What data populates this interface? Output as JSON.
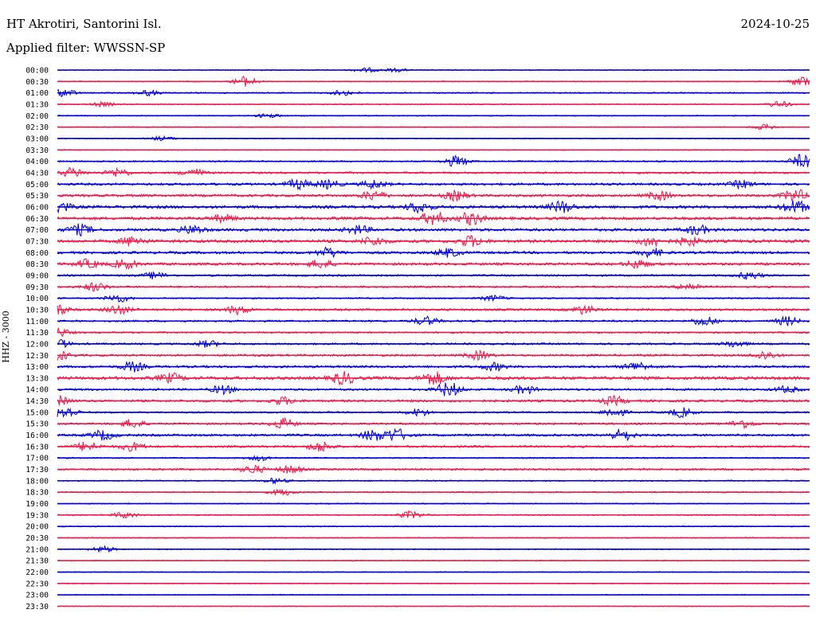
{
  "header": {
    "station": "HT Akrotiri, Santorini Isl.",
    "date": "2024-10-25",
    "filter": "Applied filter: WWSSN-SP"
  },
  "chart_data": {
    "type": "line",
    "title": "HT Akrotiri, Santorini Isl.",
    "ylabel": "HHZ - 3000",
    "colors": [
      "#0000e0",
      "#f0194a"
    ],
    "note_values": "amplitude levels 0-1 per 30-min trace row, bursts as fraction along trace",
    "rows": [
      {
        "label": "00:00",
        "level": 0.25,
        "bursts": [
          [
            0.41,
            0.4
          ],
          [
            0.45,
            0.3
          ]
        ]
      },
      {
        "label": "00:30",
        "level": 0.22,
        "bursts": [
          [
            0.25,
            1.0
          ],
          [
            0.99,
            1.0
          ]
        ]
      },
      {
        "label": "01:00",
        "level": 0.3,
        "bursts": [
          [
            0.01,
            0.7
          ],
          [
            0.12,
            0.5
          ],
          [
            0.38,
            0.5
          ]
        ]
      },
      {
        "label": "01:30",
        "level": 0.25,
        "bursts": [
          [
            0.06,
            0.4
          ],
          [
            0.96,
            0.6
          ]
        ]
      },
      {
        "label": "02:00",
        "level": 0.25,
        "bursts": [
          [
            0.28,
            0.4
          ]
        ]
      },
      {
        "label": "02:30",
        "level": 0.22,
        "bursts": [
          [
            0.94,
            0.5
          ]
        ]
      },
      {
        "label": "03:00",
        "level": 0.22,
        "bursts": [
          [
            0.14,
            0.4
          ]
        ]
      },
      {
        "label": "03:30",
        "level": 0.2,
        "bursts": []
      },
      {
        "label": "04:00",
        "level": 0.35,
        "bursts": [
          [
            0.53,
            1.0
          ],
          [
            0.99,
            1.3
          ]
        ]
      },
      {
        "label": "04:30",
        "level": 0.45,
        "bursts": [
          [
            0.02,
            0.9
          ],
          [
            0.08,
            0.8
          ],
          [
            0.18,
            0.8
          ]
        ]
      },
      {
        "label": "05:00",
        "level": 0.55,
        "bursts": [
          [
            0.32,
            0.9
          ],
          [
            0.36,
            0.8
          ],
          [
            0.42,
            0.8
          ],
          [
            0.91,
            0.7
          ]
        ]
      },
      {
        "label": "05:30",
        "level": 0.6,
        "bursts": [
          [
            0.42,
            0.9
          ],
          [
            0.53,
            0.9
          ],
          [
            0.8,
            0.8
          ],
          [
            0.98,
            1.2
          ]
        ]
      },
      {
        "label": "06:00",
        "level": 0.7,
        "bursts": [
          [
            0.0,
            1.4
          ],
          [
            0.48,
            1.0
          ],
          [
            0.67,
            1.1
          ],
          [
            0.98,
            1.3
          ]
        ]
      },
      {
        "label": "06:30",
        "level": 0.7,
        "bursts": [
          [
            0.5,
            1.4
          ],
          [
            0.55,
            1.2
          ],
          [
            0.22,
            0.7
          ]
        ]
      },
      {
        "label": "07:00",
        "level": 0.65,
        "bursts": [
          [
            0.03,
            1.0
          ],
          [
            0.18,
            0.8
          ],
          [
            0.4,
            0.8
          ],
          [
            0.85,
            0.9
          ]
        ]
      },
      {
        "label": "07:30",
        "level": 0.7,
        "bursts": [
          [
            0.1,
            0.9
          ],
          [
            0.42,
            0.8
          ],
          [
            0.55,
            1.0
          ],
          [
            0.79,
            1.0
          ],
          [
            0.84,
            0.8
          ]
        ]
      },
      {
        "label": "08:00",
        "level": 0.6,
        "bursts": [
          [
            0.36,
            0.9
          ],
          [
            0.52,
            0.8
          ],
          [
            0.79,
            0.8
          ]
        ]
      },
      {
        "label": "08:30",
        "level": 0.6,
        "bursts": [
          [
            0.04,
            0.8
          ],
          [
            0.09,
            0.9
          ],
          [
            0.35,
            0.8
          ],
          [
            0.77,
            0.8
          ]
        ]
      },
      {
        "label": "09:00",
        "level": 0.45,
        "bursts": [
          [
            0.13,
            0.6
          ],
          [
            0.92,
            0.7
          ]
        ]
      },
      {
        "label": "09:30",
        "level": 0.45,
        "bursts": [
          [
            0.05,
            0.8
          ],
          [
            0.84,
            0.7
          ]
        ]
      },
      {
        "label": "10:00",
        "level": 0.35,
        "bursts": [
          [
            0.08,
            0.8
          ],
          [
            0.58,
            0.5
          ]
        ]
      },
      {
        "label": "10:30",
        "level": 0.5,
        "bursts": [
          [
            0.0,
            0.8
          ],
          [
            0.08,
            0.9
          ],
          [
            0.24,
            0.8
          ],
          [
            0.7,
            0.8
          ]
        ]
      },
      {
        "label": "11:00",
        "level": 0.45,
        "bursts": [
          [
            0.49,
            0.8
          ],
          [
            0.86,
            0.9
          ],
          [
            0.97,
            0.8
          ]
        ]
      },
      {
        "label": "11:30",
        "level": 0.4,
        "bursts": [
          [
            0.0,
            0.9
          ]
        ]
      },
      {
        "label": "12:00",
        "level": 0.45,
        "bursts": [
          [
            0.0,
            0.9
          ],
          [
            0.2,
            0.6
          ],
          [
            0.9,
            0.6
          ]
        ]
      },
      {
        "label": "12:30",
        "level": 0.5,
        "bursts": [
          [
            0.0,
            1.0
          ],
          [
            0.56,
            0.8
          ],
          [
            0.94,
            0.8
          ]
        ]
      },
      {
        "label": "13:00",
        "level": 0.55,
        "bursts": [
          [
            0.1,
            0.9
          ],
          [
            0.58,
            0.7
          ],
          [
            0.77,
            0.9
          ]
        ]
      },
      {
        "label": "13:30",
        "level": 0.75,
        "bursts": [
          [
            0.15,
            0.8
          ],
          [
            0.38,
            1.2
          ],
          [
            0.5,
            1.3
          ]
        ]
      },
      {
        "label": "14:00",
        "level": 0.5,
        "bursts": [
          [
            0.22,
            0.8
          ],
          [
            0.52,
            1.5
          ],
          [
            0.62,
            0.8
          ],
          [
            0.97,
            0.6
          ]
        ]
      },
      {
        "label": "14:30",
        "level": 0.55,
        "bursts": [
          [
            0.0,
            0.9
          ],
          [
            0.3,
            0.7
          ],
          [
            0.74,
            0.8
          ]
        ]
      },
      {
        "label": "15:00",
        "level": 0.4,
        "bursts": [
          [
            0.01,
            1.2
          ],
          [
            0.48,
            0.7
          ],
          [
            0.74,
            0.9
          ],
          [
            0.83,
            0.9
          ]
        ]
      },
      {
        "label": "15:30",
        "level": 0.45,
        "bursts": [
          [
            0.1,
            0.8
          ],
          [
            0.3,
            1.0
          ],
          [
            0.91,
            0.8
          ]
        ]
      },
      {
        "label": "16:00",
        "level": 0.55,
        "bursts": [
          [
            0.06,
            0.9
          ],
          [
            0.42,
            1.0
          ],
          [
            0.45,
            1.2
          ],
          [
            0.75,
            1.1
          ]
        ]
      },
      {
        "label": "16:30",
        "level": 0.5,
        "bursts": [
          [
            0.04,
            0.9
          ],
          [
            0.1,
            0.8
          ],
          [
            0.35,
            1.0
          ]
        ]
      },
      {
        "label": "17:00",
        "level": 0.3,
        "bursts": [
          [
            0.27,
            0.5
          ]
        ]
      },
      {
        "label": "17:30",
        "level": 0.45,
        "bursts": [
          [
            0.26,
            0.8
          ],
          [
            0.31,
            0.8
          ]
        ]
      },
      {
        "label": "18:00",
        "level": 0.3,
        "bursts": [
          [
            0.29,
            0.5
          ]
        ]
      },
      {
        "label": "18:30",
        "level": 0.3,
        "bursts": [
          [
            0.3,
            0.6
          ]
        ]
      },
      {
        "label": "19:00",
        "level": 0.25,
        "bursts": []
      },
      {
        "label": "19:30",
        "level": 0.3,
        "bursts": [
          [
            0.09,
            0.6
          ],
          [
            0.47,
            0.7
          ]
        ]
      },
      {
        "label": "20:00",
        "level": 0.25,
        "bursts": []
      },
      {
        "label": "20:30",
        "level": 0.25,
        "bursts": []
      },
      {
        "label": "21:00",
        "level": 0.25,
        "bursts": [
          [
            0.06,
            0.6
          ]
        ]
      },
      {
        "label": "21:30",
        "level": 0.22,
        "bursts": []
      },
      {
        "label": "22:00",
        "level": 0.22,
        "bursts": []
      },
      {
        "label": "22:30",
        "level": 0.2,
        "bursts": []
      },
      {
        "label": "23:00",
        "level": 0.2,
        "bursts": []
      },
      {
        "label": "23:30",
        "level": 0.2,
        "bursts": []
      }
    ]
  }
}
